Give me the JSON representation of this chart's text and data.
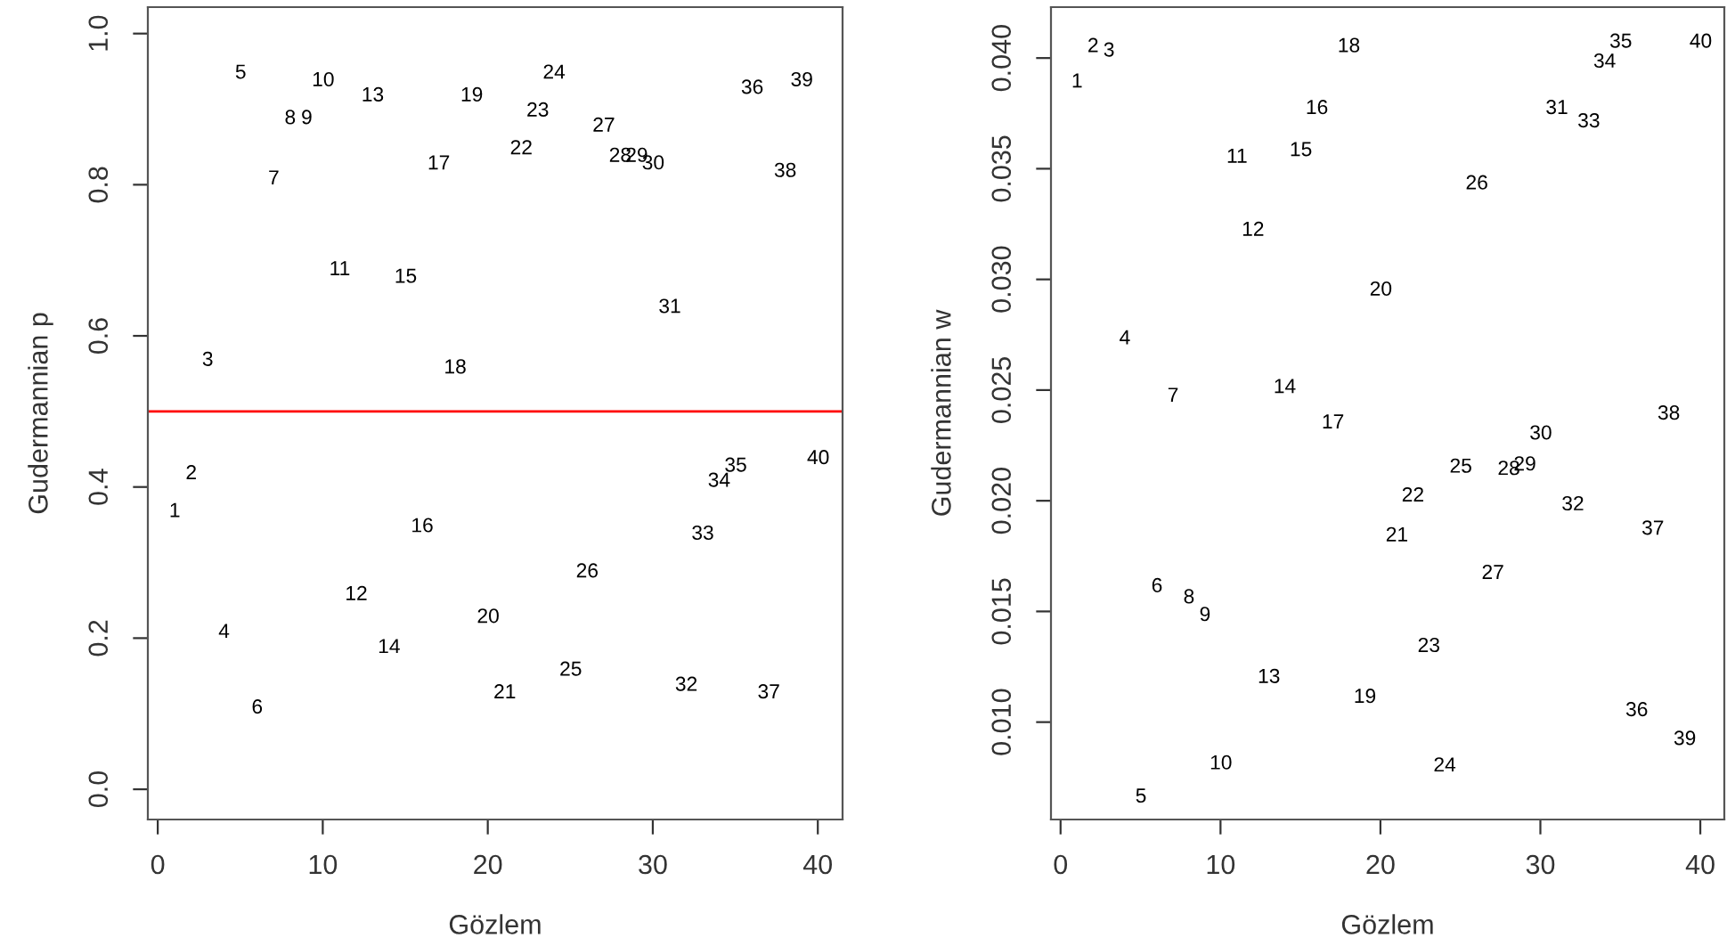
{
  "chart_data": [
    {
      "type": "scatter",
      "xlabel": "Gözlem",
      "ylabel": "Gudermannian p",
      "grid": false,
      "x": [
        1,
        2,
        3,
        4,
        5,
        6,
        7,
        8,
        9,
        10,
        11,
        12,
        13,
        14,
        15,
        16,
        17,
        18,
        19,
        20,
        21,
        22,
        23,
        24,
        25,
        26,
        27,
        28,
        29,
        30,
        31,
        32,
        33,
        34,
        35,
        36,
        37,
        38,
        39,
        40
      ],
      "values": [
        0.37,
        0.42,
        0.57,
        0.21,
        0.95,
        0.11,
        0.81,
        0.89,
        0.89,
        0.94,
        0.69,
        0.26,
        0.92,
        0.19,
        0.68,
        0.35,
        0.83,
        0.56,
        0.92,
        0.23,
        0.13,
        0.85,
        0.9,
        0.95,
        0.16,
        0.29,
        0.88,
        0.84,
        0.84,
        0.83,
        0.64,
        0.14,
        0.34,
        0.41,
        0.43,
        0.93,
        0.13,
        0.82,
        0.94,
        0.44
      ],
      "xlim": [
        -0.6,
        41.5
      ],
      "xticks": [
        0,
        10,
        20,
        30,
        40
      ],
      "ylim": [
        -0.04,
        1.035
      ],
      "yticks": [
        {
          "value": 0,
          "label": "0.0"
        },
        {
          "value": 0.2,
          "label": "0.2"
        },
        {
          "value": 0.4,
          "label": "0.4"
        },
        {
          "value": 0.6,
          "label": "0.6"
        },
        {
          "value": 0.8,
          "label": "0.8"
        },
        {
          "value": 1,
          "label": "1.0"
        }
      ],
      "ref_lines": [
        {
          "axis": "y",
          "value": 0.5,
          "color": "#ff0000"
        }
      ]
    },
    {
      "type": "scatter",
      "xlabel": "Gözlem",
      "ylabel": "Gudermannian w",
      "grid": false,
      "x": [
        1,
        2,
        3,
        4,
        5,
        6,
        7,
        8,
        9,
        10,
        11,
        12,
        13,
        14,
        15,
        16,
        17,
        18,
        19,
        20,
        21,
        22,
        23,
        24,
        25,
        26,
        27,
        28,
        29,
        30,
        31,
        32,
        33,
        34,
        35,
        36,
        37,
        38,
        39,
        40
      ],
      "values": [
        0.039,
        0.0406,
        0.0404,
        0.0274,
        0.0067,
        0.0162,
        0.0248,
        0.0157,
        0.0149,
        0.0082,
        0.0356,
        0.0323,
        0.0121,
        0.0252,
        0.0359,
        0.0378,
        0.0236,
        0.0406,
        0.0112,
        0.0296,
        0.0185,
        0.0203,
        0.0135,
        0.0081,
        0.0216,
        0.0344,
        0.0168,
        0.0215,
        0.0217,
        0.0231,
        0.0378,
        0.0199,
        0.0372,
        0.0399,
        0.0408,
        0.0106,
        0.0188,
        0.024,
        0.0093,
        0.0408
      ],
      "xlim": [
        -0.6,
        41.5
      ],
      "xticks": [
        0,
        10,
        20,
        30,
        40
      ],
      "ylim": [
        0.0056,
        0.0423
      ],
      "yticks": [
        {
          "value": 0.01,
          "label": "0.010"
        },
        {
          "value": 0.015,
          "label": "0.015"
        },
        {
          "value": 0.02,
          "label": "0.020"
        },
        {
          "value": 0.025,
          "label": "0.025"
        },
        {
          "value": 0.03,
          "label": "0.030"
        },
        {
          "value": 0.035,
          "label": "0.035"
        },
        {
          "value": 0.04,
          "label": "0.040"
        }
      ]
    }
  ]
}
